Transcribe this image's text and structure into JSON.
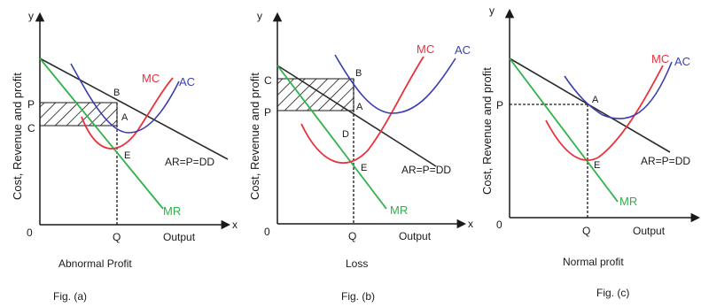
{
  "colors": {
    "axis": "#1a1a1a",
    "ar": "#2b2b2b",
    "mc": "#e8323c",
    "ac": "#3b3fae",
    "mr": "#2fb24a",
    "hatch": "#1a1a1a"
  },
  "labels": {
    "y": "y",
    "x": "x",
    "origin": "0",
    "q": "Q",
    "output": "Output",
    "ylabel": "Cost, Revenue and  profit",
    "mc": "MC",
    "ac": "AC",
    "mr": "MR",
    "ar": "AR=P=DD"
  },
  "figures": [
    {
      "caption": "Abnormal Profit",
      "fig": "Fig. (a)",
      "points": {
        "p": "P",
        "c": "C",
        "a": "A",
        "b": "B",
        "e": "E"
      }
    },
    {
      "caption": "Loss",
      "fig": "Fig. (b)",
      "points": {
        "c": "C",
        "p": "P",
        "a": "A",
        "b": "B",
        "d": "D",
        "e": "E"
      }
    },
    {
      "caption": "Normal profit",
      "fig": "Fig. (c)",
      "points": {
        "p": "P",
        "a": "A",
        "e": "E"
      }
    }
  ]
}
